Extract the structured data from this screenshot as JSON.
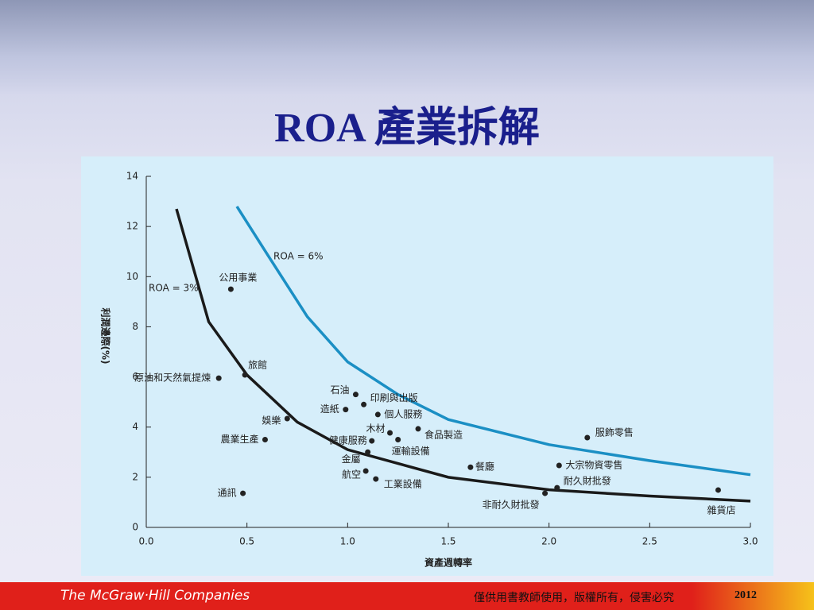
{
  "title": "ROA 產業拆解",
  "footer": {
    "brand": "The McGraw·Hill Companies",
    "notice": "僅供用書教師使用，版權所有，侵害必究",
    "year": "2012"
  },
  "chart_data": {
    "type": "scatter",
    "x_label": "資產週轉率",
    "y_label": "利潤邊際(%)",
    "xlim": [
      0,
      3
    ],
    "ylim": [
      0,
      14
    ],
    "xticks": [
      {
        "value": 0,
        "label": "0.0"
      },
      0.5,
      {
        "value": 1,
        "label": "1.0"
      },
      1.5,
      {
        "value": 2,
        "label": "2.0"
      },
      2.5,
      {
        "value": 3,
        "label": "3.0"
      }
    ],
    "yticks": [
      0,
      2,
      4,
      6,
      8,
      10,
      12,
      14
    ],
    "color": "#222222",
    "labels": [
      "公用事業",
      "原油和天然氣提煉",
      "旅館",
      "娛樂",
      "農業生產",
      "通訊",
      "石油",
      "印刷與出版",
      "造紙",
      "個人服務",
      "木材",
      "食品製造",
      "健康服務",
      "運輸設備",
      "金屬",
      "航空",
      "工業設備",
      "餐廳",
      "非耐久財批發",
      "大宗物資零售",
      "耐久財批發",
      "服飾零售",
      "雜貨店"
    ],
    "x": [
      0.42,
      0.36,
      0.49,
      0.7,
      0.59,
      0.48,
      1.04,
      1.08,
      0.99,
      1.15,
      1.21,
      1.35,
      1.12,
      1.25,
      1.1,
      1.09,
      1.14,
      1.61,
      1.98,
      2.05,
      2.04,
      2.19,
      2.84
    ],
    "values": [
      9.5,
      5.95,
      6.08,
      4.34,
      3.5,
      1.36,
      5.3,
      4.9,
      4.7,
      4.5,
      3.77,
      3.93,
      3.45,
      3.5,
      3.0,
      2.25,
      1.93,
      2.4,
      1.36,
      2.47,
      1.58,
      3.58,
      1.49
    ],
    "curves": [
      {
        "name": "ROA = 3%",
        "color": "#1a1a1a",
        "x": [
          0.15,
          0.31,
          0.5,
          0.75,
          1.0,
          1.5,
          2.0,
          2.5,
          3.0
        ],
        "values": [
          12.7,
          8.2,
          6.08,
          4.2,
          3.1,
          2.0,
          1.5,
          1.25,
          1.05
        ]
      },
      {
        "name": "ROA = 6%",
        "color": "#1b8fc4",
        "x": [
          0.45,
          0.6,
          0.8,
          1.0,
          1.25,
          1.5,
          2.0,
          2.5,
          3.0
        ],
        "values": [
          12.8,
          10.9,
          8.4,
          6.6,
          5.3,
          4.3,
          3.3,
          2.66,
          2.1
        ]
      }
    ]
  }
}
